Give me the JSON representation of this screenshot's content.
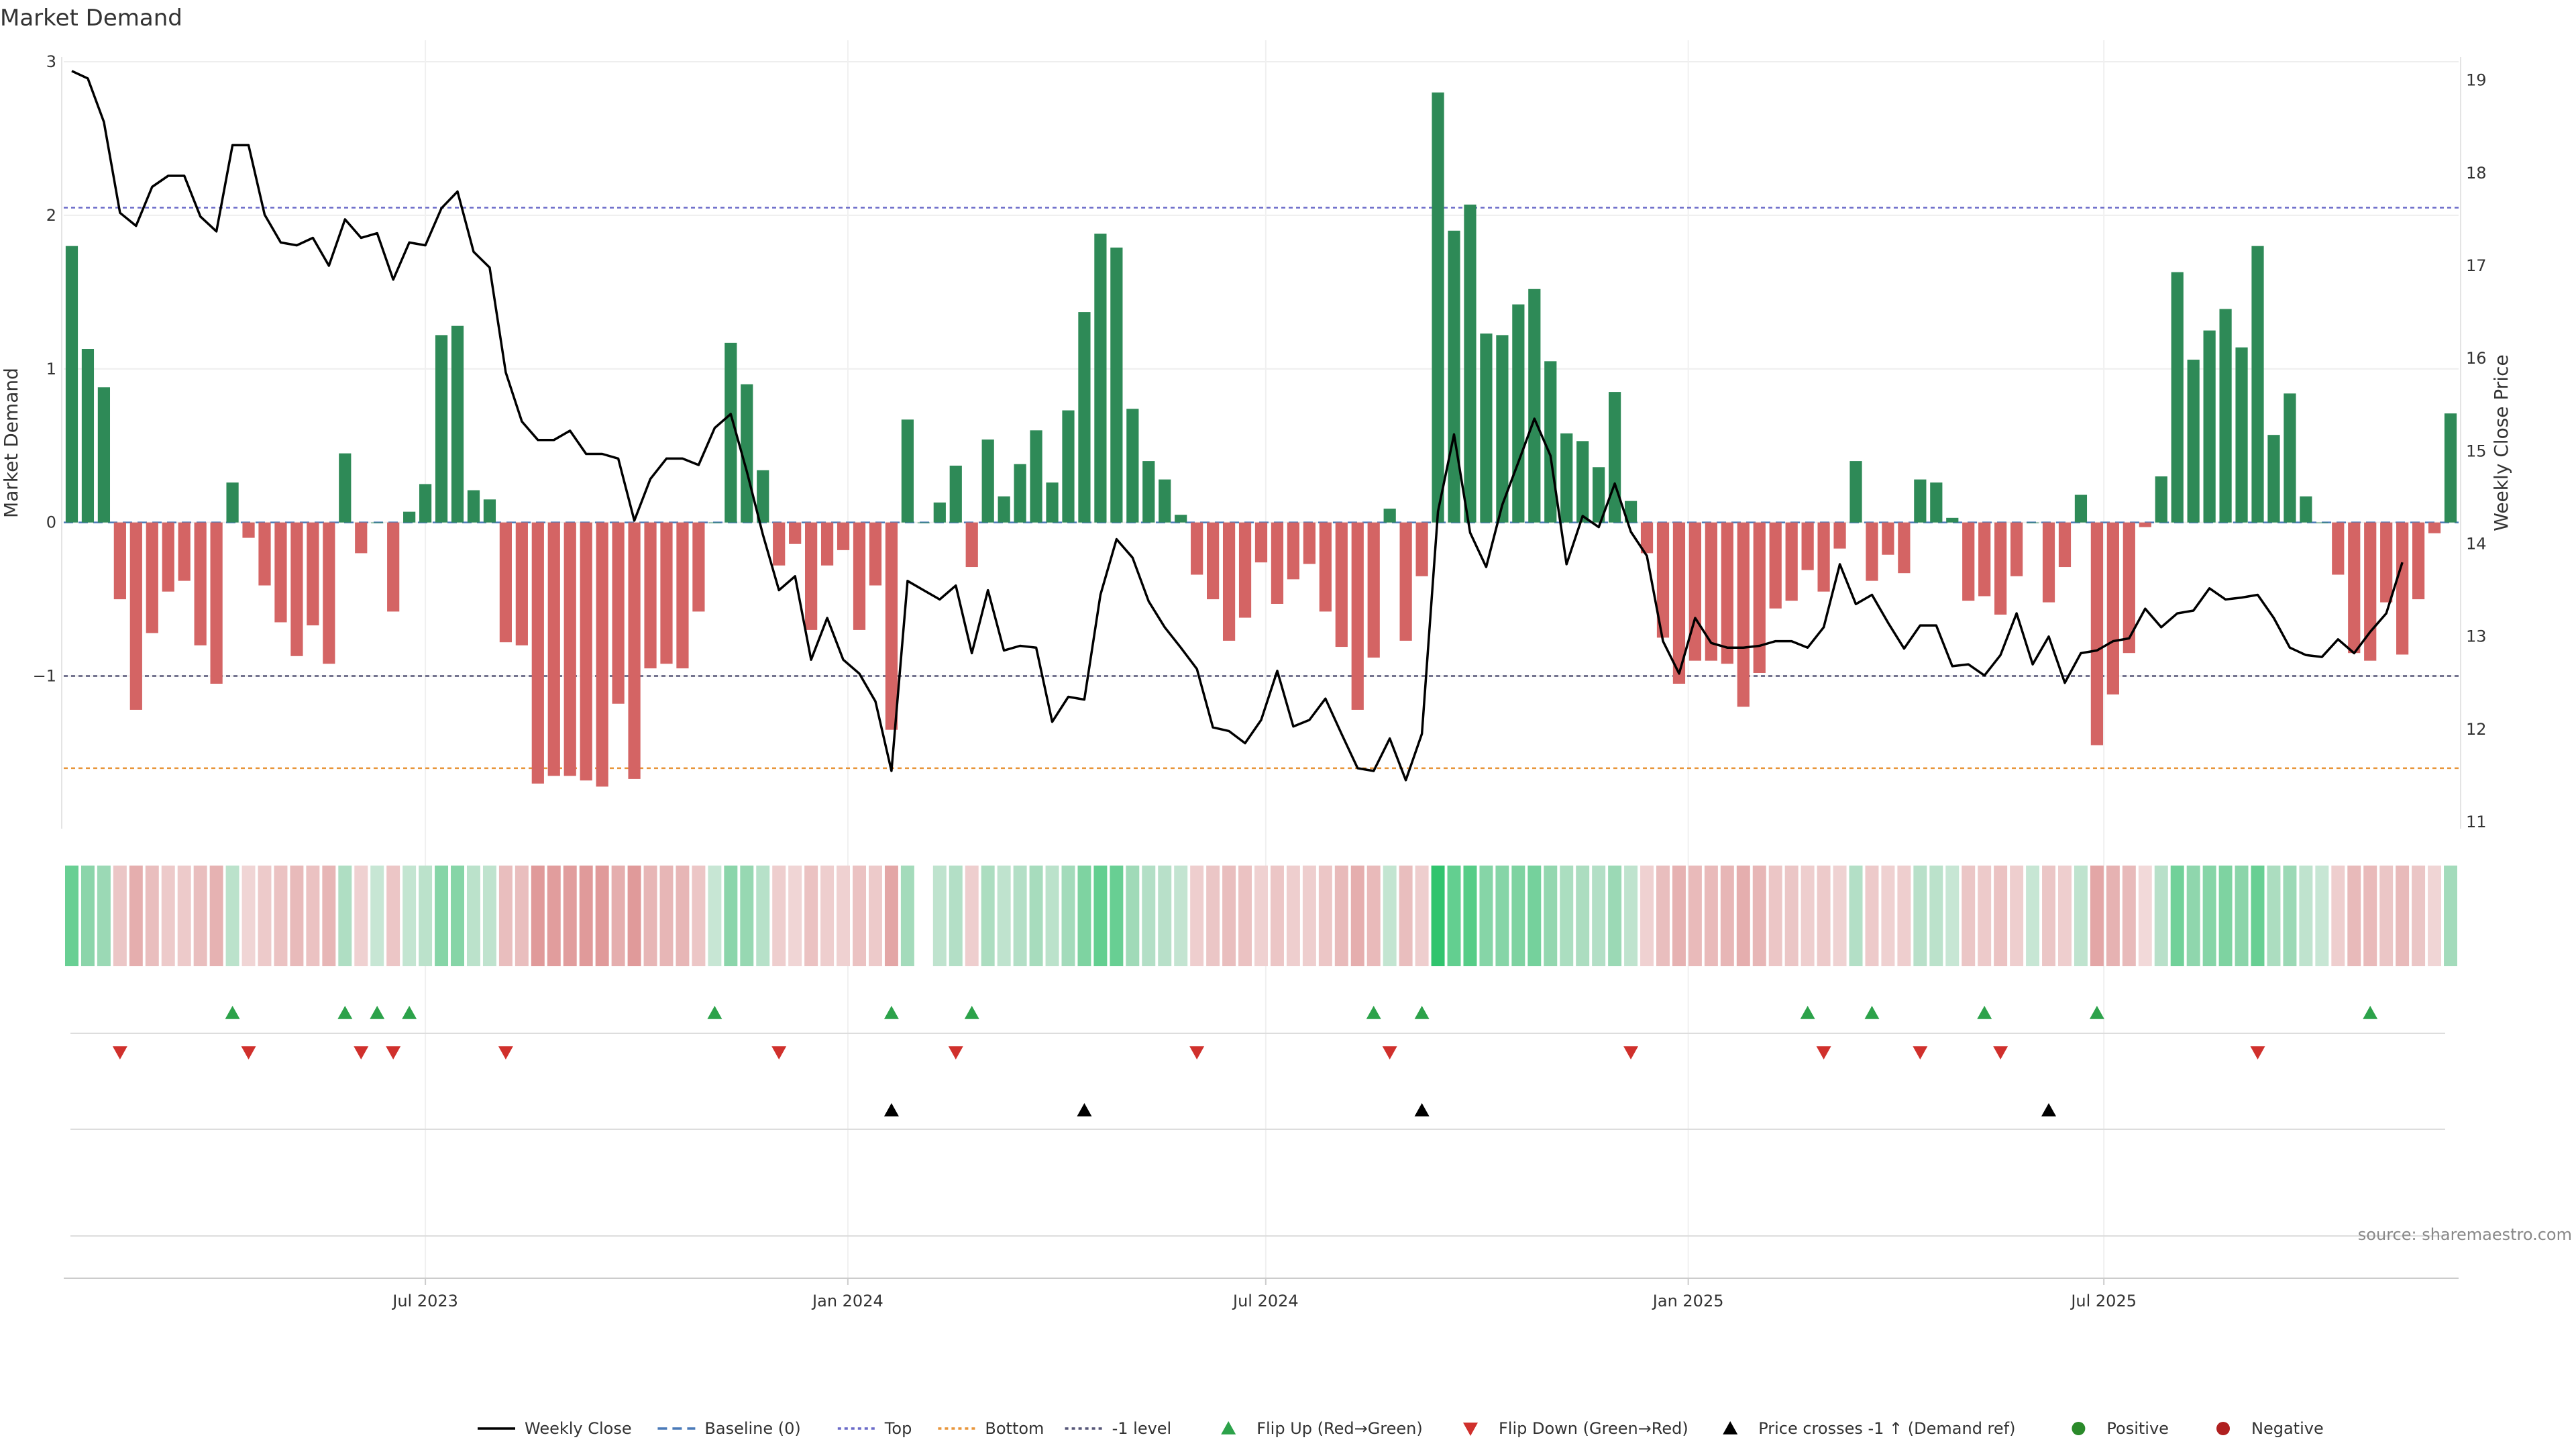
{
  "chart_data": {
    "type": "bar",
    "title": "Market Demand",
    "ylabel_left": "Market Demand",
    "ylabel_right": "Weekly Close Price",
    "ylim_left": [
      -1.95,
      3.0
    ],
    "ylim_right": [
      11.0,
      19.2
    ],
    "yticks_left": [
      3,
      2,
      1,
      0,
      -1
    ],
    "yticks_right": [
      19,
      18,
      17,
      16,
      15,
      14,
      13,
      12,
      11
    ],
    "x_ticks": [
      "Jul 2023",
      "Jan 2024",
      "Jul 2024",
      "Jan 2025",
      "Jul 2025"
    ],
    "x_tick_dates": [
      "2023-07-01",
      "2024-01-01",
      "2024-07-01",
      "2025-01-01",
      "2025-07-01"
    ],
    "first_week": "2023-01-28",
    "reference_levels": {
      "top": 2.05,
      "bottom": -1.6,
      "minus_one": -1.0,
      "baseline": 0
    },
    "demand": [
      1.8,
      1.13,
      0.88,
      -0.5,
      -1.22,
      -0.72,
      -0.45,
      -0.38,
      -0.8,
      -1.05,
      0.26,
      -0.1,
      -0.41,
      -0.65,
      -0.87,
      -0.67,
      -0.92,
      0.45,
      -0.2,
      0.0,
      -0.58,
      0.07,
      0.25,
      1.22,
      1.28,
      0.21,
      0.15,
      -0.78,
      -0.8,
      -1.7,
      -1.65,
      -1.65,
      -1.68,
      -1.72,
      -1.18,
      -1.67,
      -0.95,
      -0.92,
      -0.95,
      -0.58,
      0.0,
      1.17,
      0.9,
      0.34,
      -0.28,
      -0.14,
      -0.7,
      -0.28,
      -0.18,
      -0.7,
      -0.41,
      -1.35,
      0.67,
      0.0,
      0.13,
      0.37,
      -0.29,
      0.54,
      0.17,
      0.38,
      0.6,
      0.26,
      0.73,
      1.37,
      1.88,
      1.79,
      0.74,
      0.4,
      0.28,
      0.05,
      -0.34,
      -0.5,
      -0.77,
      -0.62,
      -0.26,
      -0.53,
      -0.37,
      -0.27,
      -0.58,
      -0.81,
      -1.22,
      -0.88,
      0.09,
      -0.77,
      -0.35,
      2.8,
      1.9,
      2.07,
      1.23,
      1.22,
      1.42,
      1.52,
      1.05,
      0.58,
      0.53,
      0.36,
      0.85,
      0.14,
      -0.2,
      -0.75,
      -1.05,
      -0.9,
      -0.9,
      -0.92,
      -1.2,
      -0.98,
      -0.56,
      -0.51,
      -0.31,
      -0.45,
      -0.17,
      0.4,
      -0.38,
      -0.21,
      -0.33,
      0.28,
      0.26,
      0.03,
      -0.51,
      -0.48,
      -0.6,
      -0.35,
      0.0,
      -0.52,
      -0.29,
      0.18,
      -1.45,
      -1.12,
      -0.85,
      -0.03,
      0.3,
      1.63,
      1.06,
      1.25,
      1.39,
      1.14,
      1.8,
      0.57,
      0.84,
      0.17,
      0.0,
      -0.34,
      -0.85,
      -0.9,
      -0.52,
      -0.86,
      -0.5,
      -0.07,
      0.71
    ],
    "weekly_close": [
      19.1,
      19.02,
      18.55,
      17.57,
      17.43,
      17.85,
      17.97,
      17.97,
      17.53,
      17.37,
      18.3,
      18.3,
      17.55,
      17.25,
      17.22,
      17.3,
      17.0,
      17.5,
      17.3,
      17.35,
      16.85,
      17.25,
      17.22,
      17.62,
      17.8,
      17.15,
      16.98,
      15.85,
      15.32,
      15.12,
      15.12,
      15.22,
      14.97,
      14.97,
      14.92,
      14.25,
      14.7,
      14.92,
      14.92,
      14.85,
      15.25,
      15.4,
      14.78,
      14.1,
      13.5,
      13.65,
      12.75,
      13.2,
      12.75,
      12.6,
      12.3,
      11.55,
      13.6,
      13.5,
      13.4,
      13.55,
      12.82,
      13.5,
      12.85,
      12.9,
      12.88,
      12.08,
      12.35,
      12.32,
      13.45,
      14.05,
      13.85,
      13.38,
      13.1,
      12.88,
      12.65,
      12.02,
      11.98,
      11.85,
      12.1,
      12.63,
      12.03,
      12.1,
      12.33,
      11.95,
      11.58,
      11.55,
      11.9,
      11.45,
      11.95,
      14.35,
      15.18,
      14.12,
      13.75,
      14.42,
      14.88,
      15.35,
      14.95,
      13.78,
      14.3,
      14.18,
      14.65,
      14.13,
      13.87,
      12.95,
      12.6,
      13.2,
      12.93,
      12.88,
      12.88,
      12.9,
      12.95,
      12.95,
      12.88,
      13.1,
      13.78,
      13.35,
      13.45,
      13.15,
      12.87,
      13.12,
      13.12,
      12.68,
      12.7,
      12.58,
      12.8,
      13.25,
      12.7,
      13.0,
      12.5,
      12.82,
      12.85,
      12.95,
      12.98,
      13.3,
      13.1,
      13.25,
      13.28,
      13.52,
      13.4,
      13.42,
      13.45,
      13.2,
      12.88,
      12.8,
      12.78,
      12.97,
      12.82,
      13.05,
      13.25,
      13.8
    ],
    "flip_up_weeks": [
      10,
      17,
      19,
      21,
      40,
      51,
      56,
      81,
      84,
      108,
      112,
      119,
      126,
      143
    ],
    "flip_down_weeks": [
      3,
      11,
      18,
      20,
      27,
      44,
      55,
      70,
      82,
      97,
      109,
      115,
      120,
      136
    ],
    "cross_up_weeks": [
      51,
      63,
      84,
      123
    ],
    "legend": [
      "Weekly Close",
      "Baseline (0)",
      "Top",
      "Bottom",
      "-1 level",
      "Flip Up (Red→Green)",
      "Flip Down (Green→Red)",
      "Price crosses -1 ↑ (Demand ref)",
      "Positive",
      "Negative"
    ]
  },
  "colors": {
    "positive_bar": "#2e8a57",
    "negative_bar": "#d46464",
    "price_line": "#000000",
    "top_line": "#6a6ac8",
    "bottom_line": "#e8953a",
    "minus_one_line": "#555577",
    "flip_up": "#2ca24a",
    "flip_down": "#d0302c",
    "cross_up": "#000000",
    "positive_dot": "#2a8a2a",
    "negative_dot": "#b02020"
  },
  "source": "source: sharemaestro.com"
}
